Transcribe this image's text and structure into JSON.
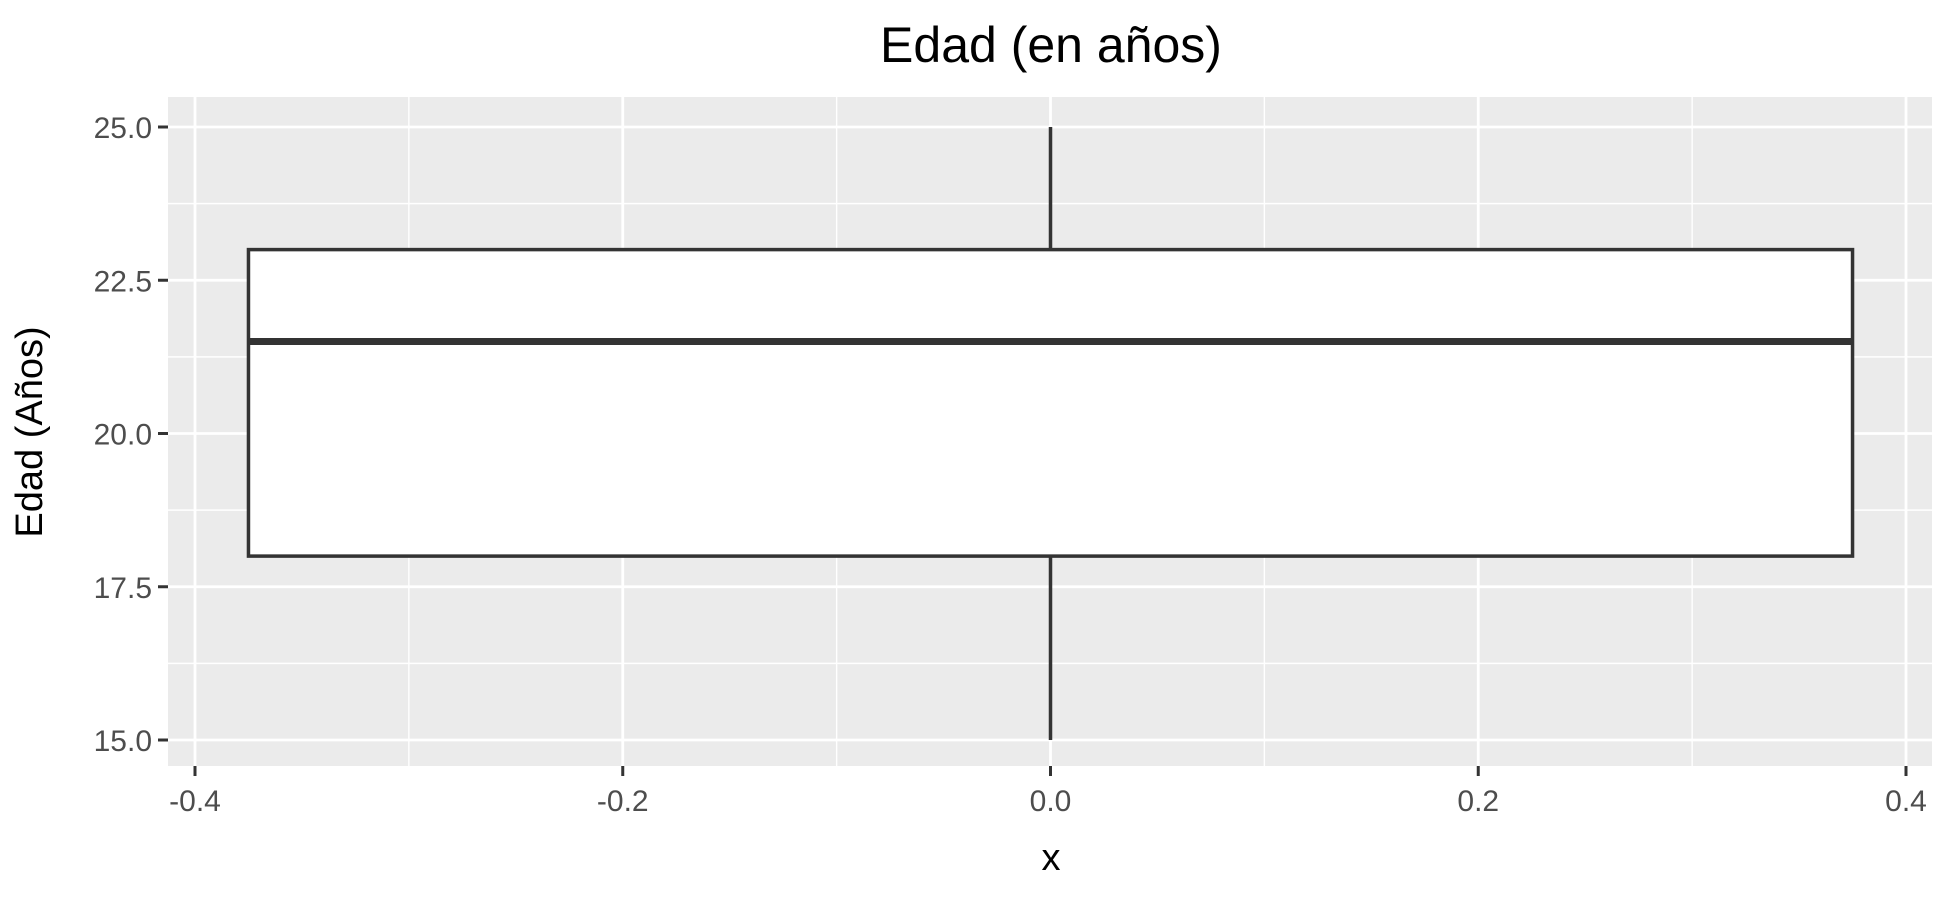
{
  "chart_data": {
    "type": "boxplot",
    "title": "Edad (en años)",
    "xlabel": "x",
    "ylabel": "Edad (Años)",
    "xlim": [
      -0.4,
      0.4
    ],
    "ylim": [
      15.0,
      25.0
    ],
    "x_ticks": [
      {
        "value": -0.4,
        "label": "-0.4"
      },
      {
        "value": -0.2,
        "label": "-0.2"
      },
      {
        "value": 0.0,
        "label": "0.0"
      },
      {
        "value": 0.2,
        "label": "0.2"
      },
      {
        "value": 0.4,
        "label": "0.4"
      }
    ],
    "y_ticks": [
      {
        "value": 15.0,
        "label": "15.0"
      },
      {
        "value": 17.5,
        "label": "17.5"
      },
      {
        "value": 20.0,
        "label": "20.0"
      },
      {
        "value": 22.5,
        "label": "22.5"
      },
      {
        "value": 25.0,
        "label": "25.0"
      }
    ],
    "x_minor": [
      -0.3,
      -0.1,
      0.1,
      0.3
    ],
    "y_minor": [
      16.25,
      18.75,
      21.25,
      23.75
    ],
    "box": {
      "x": 0.0,
      "x_left": -0.375,
      "x_right": 0.375,
      "min": 15.0,
      "q1": 18.0,
      "median": 21.5,
      "q3": 23.0,
      "max": 25.0
    },
    "grid": true,
    "legend": "none",
    "colors": {
      "panel": "#ebebeb",
      "grid": "#ffffff",
      "box_fill": "#ffffff",
      "box_stroke": "#333333",
      "tick": "#333333"
    }
  }
}
